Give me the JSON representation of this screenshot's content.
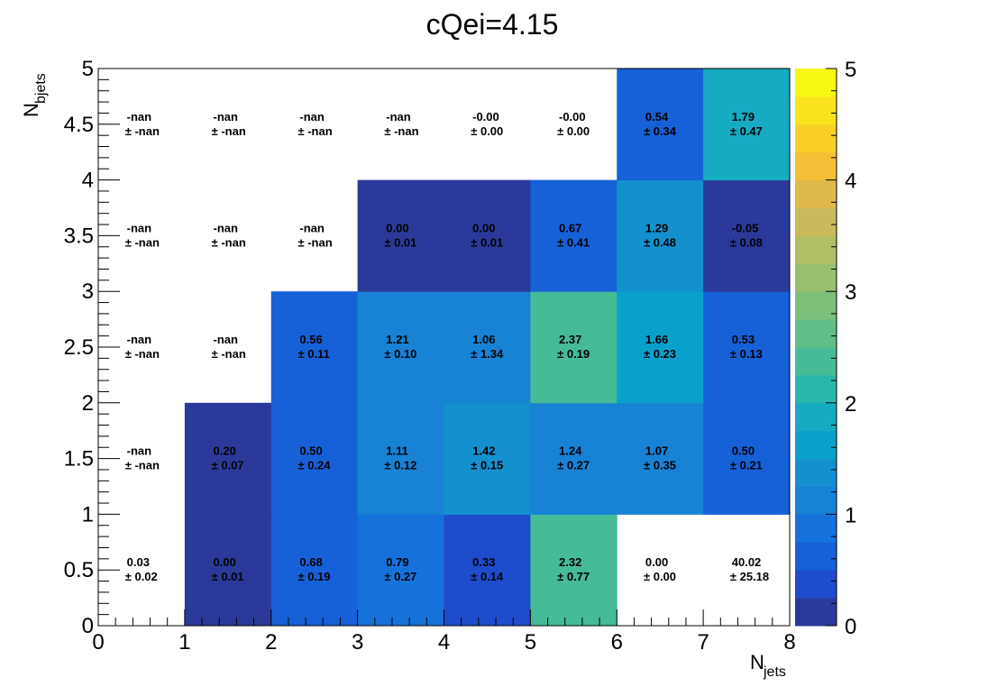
{
  "chart_data": {
    "type": "heatmap",
    "title": "cQei=4.15",
    "xlabel": "N",
    "xlabel_sub": "jets",
    "ylabel": "N",
    "ylabel_sub": "bjets",
    "xlim": [
      0,
      8
    ],
    "ylim": [
      0,
      5
    ],
    "zlim": [
      0,
      5
    ],
    "x_ticks": [
      "0",
      "1",
      "2",
      "3",
      "4",
      "5",
      "6",
      "7",
      "8"
    ],
    "y_ticks": [
      "0",
      "0.5",
      "1",
      "1.5",
      "2",
      "2.5",
      "3",
      "3.5",
      "4",
      "4.5",
      "5"
    ],
    "z_ticks": [
      "0",
      "1",
      "2",
      "3",
      "4",
      "5"
    ],
    "colormap": [
      "#2b3a9a",
      "#1f4ccc",
      "#1660d8",
      "#1672db",
      "#1882d5",
      "#1590cf",
      "#0aa0cc",
      "#14abc3",
      "#2bb6ad",
      "#45bb98",
      "#60bf87",
      "#7dc07a",
      "#97c06f",
      "#b2be66",
      "#cbba5c",
      "#dfb94b",
      "#f5c037",
      "#f9cf28",
      "#f8e31d",
      "#f7f713"
    ],
    "cells": [
      {
        "x": 0,
        "y": 0,
        "value": 0.03,
        "error": 0.02,
        "label": "0.03",
        "err_label": "± 0.02",
        "empty": true
      },
      {
        "x": 1,
        "y": 0,
        "value": 0.0,
        "error": 0.01,
        "label": "0.00",
        "err_label": "± 0.01",
        "empty": false
      },
      {
        "x": 2,
        "y": 0,
        "value": 0.68,
        "error": 0.19,
        "label": "0.68",
        "err_label": "± 0.19",
        "empty": false
      },
      {
        "x": 3,
        "y": 0,
        "value": 0.79,
        "error": 0.27,
        "label": "0.79",
        "err_label": "± 0.27",
        "empty": false
      },
      {
        "x": 4,
        "y": 0,
        "value": 0.33,
        "error": 0.14,
        "label": "0.33",
        "err_label": "± 0.14",
        "empty": false
      },
      {
        "x": 5,
        "y": 0,
        "value": 2.32,
        "error": 0.77,
        "label": "2.32",
        "err_label": "± 0.77",
        "empty": false
      },
      {
        "x": 6,
        "y": 0,
        "value": 0.0,
        "error": 0.0,
        "label": "0.00",
        "err_label": "± 0.00",
        "empty": true
      },
      {
        "x": 7,
        "y": 0,
        "value": 40.02,
        "error": 25.18,
        "label": "40.02",
        "err_label": "± 25.18",
        "empty": true
      },
      {
        "x": 0,
        "y": 1,
        "value": null,
        "error": null,
        "label": "-nan",
        "err_label": "± -nan",
        "empty": true
      },
      {
        "x": 1,
        "y": 1,
        "value": 0.2,
        "error": 0.07,
        "label": "0.20",
        "err_label": "± 0.07",
        "empty": false
      },
      {
        "x": 2,
        "y": 1,
        "value": 0.5,
        "error": 0.24,
        "label": "0.50",
        "err_label": "± 0.24",
        "empty": false
      },
      {
        "x": 3,
        "y": 1,
        "value": 1.11,
        "error": 0.12,
        "label": "1.11",
        "err_label": "± 0.12",
        "empty": false
      },
      {
        "x": 4,
        "y": 1,
        "value": 1.42,
        "error": 0.15,
        "label": "1.42",
        "err_label": "± 0.15",
        "empty": false
      },
      {
        "x": 5,
        "y": 1,
        "value": 1.24,
        "error": 0.27,
        "label": "1.24",
        "err_label": "± 0.27",
        "empty": false
      },
      {
        "x": 6,
        "y": 1,
        "value": 1.07,
        "error": 0.35,
        "label": "1.07",
        "err_label": "± 0.35",
        "empty": false
      },
      {
        "x": 7,
        "y": 1,
        "value": 0.5,
        "error": 0.21,
        "label": "0.50",
        "err_label": "± 0.21",
        "empty": false
      },
      {
        "x": 0,
        "y": 2,
        "value": null,
        "error": null,
        "label": "-nan",
        "err_label": "± -nan",
        "empty": true
      },
      {
        "x": 1,
        "y": 2,
        "value": null,
        "error": null,
        "label": "-nan",
        "err_label": "± -nan",
        "empty": true
      },
      {
        "x": 2,
        "y": 2,
        "value": 0.56,
        "error": 0.11,
        "label": "0.56",
        "err_label": "± 0.11",
        "empty": false
      },
      {
        "x": 3,
        "y": 2,
        "value": 1.21,
        "error": 0.1,
        "label": "1.21",
        "err_label": "± 0.10",
        "empty": false
      },
      {
        "x": 4,
        "y": 2,
        "value": 1.06,
        "error": 1.34,
        "label": "1.06",
        "err_label": "± 1.34",
        "empty": false
      },
      {
        "x": 5,
        "y": 2,
        "value": 2.37,
        "error": 0.19,
        "label": "2.37",
        "err_label": "± 0.19",
        "empty": false
      },
      {
        "x": 6,
        "y": 2,
        "value": 1.66,
        "error": 0.23,
        "label": "1.66",
        "err_label": "± 0.23",
        "empty": false
      },
      {
        "x": 7,
        "y": 2,
        "value": 0.53,
        "error": 0.13,
        "label": "0.53",
        "err_label": "± 0.13",
        "empty": false
      },
      {
        "x": 0,
        "y": 3,
        "value": null,
        "error": null,
        "label": "-nan",
        "err_label": "± -nan",
        "empty": true
      },
      {
        "x": 1,
        "y": 3,
        "value": null,
        "error": null,
        "label": "-nan",
        "err_label": "± -nan",
        "empty": true
      },
      {
        "x": 2,
        "y": 3,
        "value": null,
        "error": null,
        "label": "-nan",
        "err_label": "± -nan",
        "empty": true
      },
      {
        "x": 3,
        "y": 3,
        "value": 0.0,
        "error": 0.01,
        "label": "0.00",
        "err_label": "± 0.01",
        "empty": false
      },
      {
        "x": 4,
        "y": 3,
        "value": 0.0,
        "error": 0.01,
        "label": "0.00",
        "err_label": "± 0.01",
        "empty": false
      },
      {
        "x": 5,
        "y": 3,
        "value": 0.67,
        "error": 0.41,
        "label": "0.67",
        "err_label": "± 0.41",
        "empty": false
      },
      {
        "x": 6,
        "y": 3,
        "value": 1.29,
        "error": 0.48,
        "label": "1.29",
        "err_label": "± 0.48",
        "empty": false
      },
      {
        "x": 7,
        "y": 3,
        "value": -0.05,
        "error": 0.08,
        "label": "-0.05",
        "err_label": "± 0.08",
        "empty": false
      },
      {
        "x": 0,
        "y": 4,
        "value": null,
        "error": null,
        "label": "-nan",
        "err_label": "± -nan",
        "empty": true
      },
      {
        "x": 1,
        "y": 4,
        "value": null,
        "error": null,
        "label": "-nan",
        "err_label": "± -nan",
        "empty": true
      },
      {
        "x": 2,
        "y": 4,
        "value": null,
        "error": null,
        "label": "-nan",
        "err_label": "± -nan",
        "empty": true
      },
      {
        "x": 3,
        "y": 4,
        "value": null,
        "error": null,
        "label": "-nan",
        "err_label": "± -nan",
        "empty": true
      },
      {
        "x": 4,
        "y": 4,
        "value": -0.0,
        "error": 0.0,
        "label": "-0.00",
        "err_label": "± 0.00",
        "empty": true
      },
      {
        "x": 5,
        "y": 4,
        "value": -0.0,
        "error": 0.0,
        "label": "-0.00",
        "err_label": "± 0.00",
        "empty": true
      },
      {
        "x": 6,
        "y": 4,
        "value": 0.54,
        "error": 0.34,
        "label": "0.54",
        "err_label": "± 0.34",
        "empty": false
      },
      {
        "x": 7,
        "y": 4,
        "value": 1.79,
        "error": 0.47,
        "label": "1.79",
        "err_label": "± 0.47",
        "empty": false
      }
    ]
  }
}
